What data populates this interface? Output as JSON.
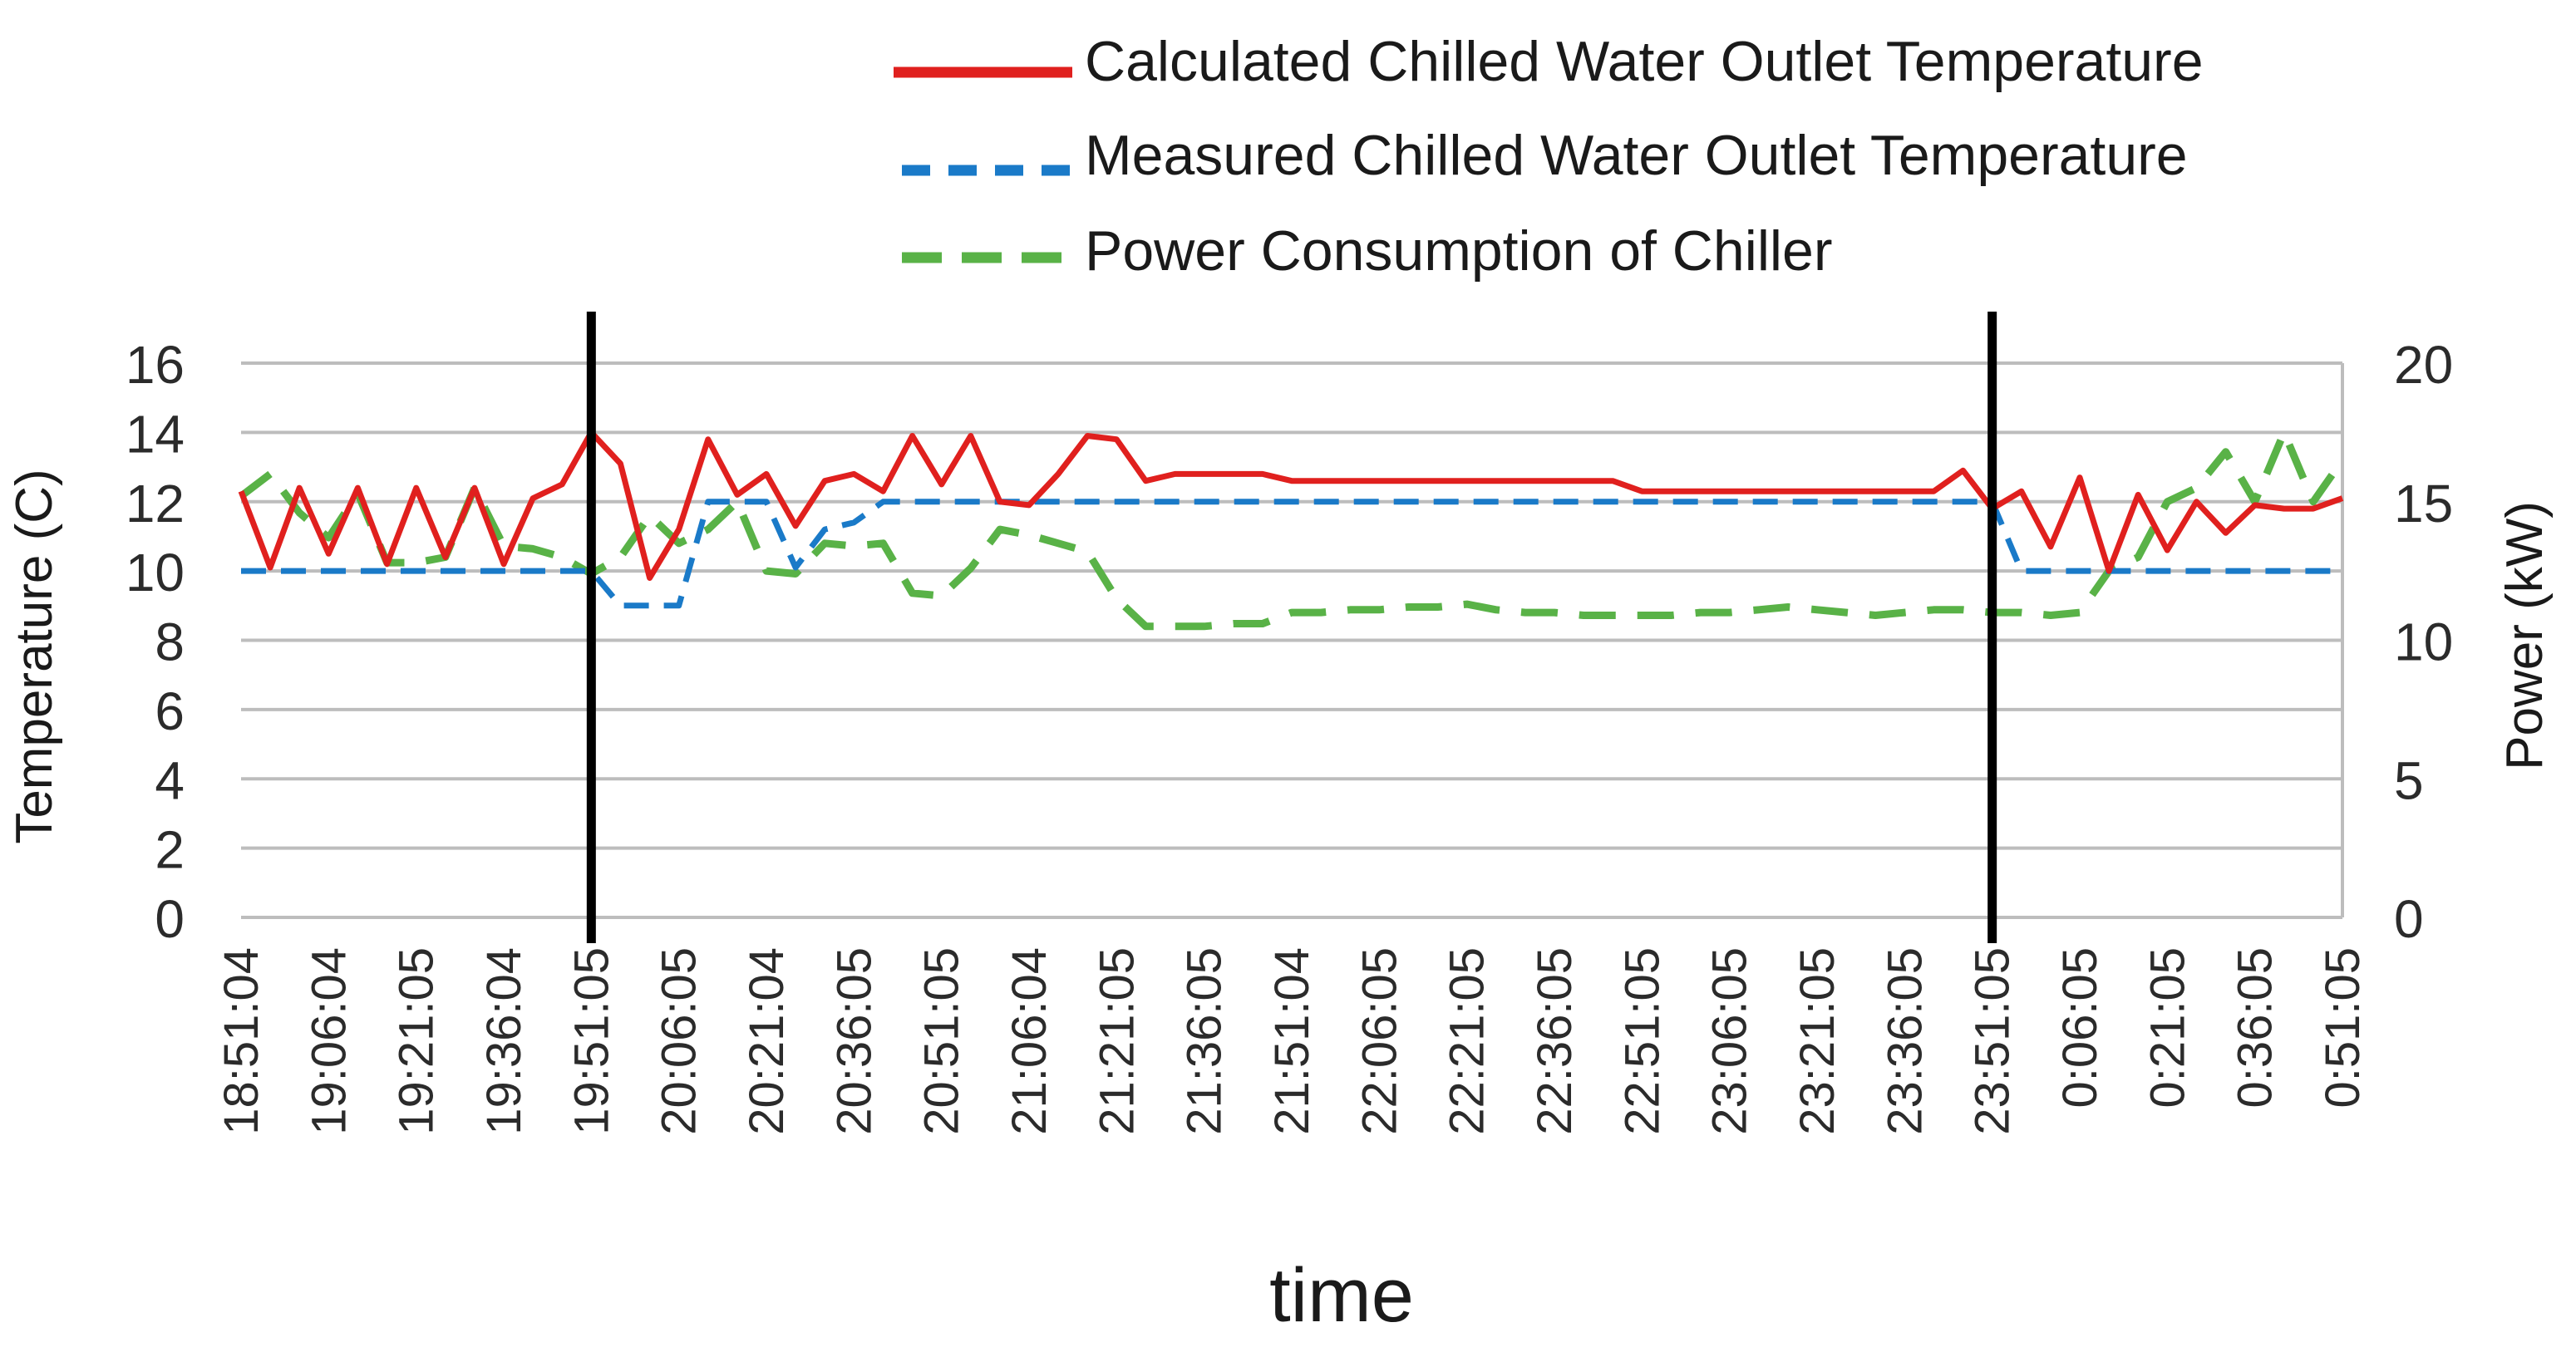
{
  "chart_data": {
    "type": "line",
    "xlabel": "time",
    "ylabel": "Temperature (C)",
    "y2label": "Power (kW)",
    "ylim": [
      0,
      16
    ],
    "y2lim": [
      0,
      20
    ],
    "yticks": [
      0,
      2,
      4,
      6,
      8,
      10,
      12,
      14,
      16
    ],
    "y2ticks": [
      0,
      5,
      10,
      15,
      20
    ],
    "grid": true,
    "legend_position": "top-right",
    "x_tick_labels": [
      "18:51:04",
      "19:06:04",
      "19:21:05",
      "19:36:04",
      "19:51:05",
      "20:06:05",
      "20:21:04",
      "20:36:05",
      "20:51:05",
      "21:06:04",
      "21:21:05",
      "21:36:05",
      "21:51:04",
      "22:06:05",
      "22:21:05",
      "22:36:05",
      "22:51:05",
      "23:06:05",
      "23:21:05",
      "23:36:05",
      "23:51:05",
      "0:06:05",
      "0:21:05",
      "0:36:05",
      "0:51:05"
    ],
    "x_samples_per_interval": 3,
    "vertical_markers": [
      "19:51:05",
      "23:51:05"
    ],
    "series": [
      {
        "name": "Calculated Chilled Water Outlet Temperature",
        "axis": "left",
        "color": "#e0201e",
        "style": "solid",
        "values": [
          12.3,
          10.1,
          12.4,
          10.5,
          12.4,
          10.2,
          12.4,
          10.4,
          12.4,
          10.2,
          12.1,
          12.5,
          14.0,
          13.1,
          9.8,
          11.2,
          13.8,
          12.2,
          12.8,
          11.3,
          12.6,
          12.8,
          12.3,
          13.9,
          12.5,
          13.9,
          12.0,
          11.9,
          12.8,
          13.9,
          13.8,
          12.6,
          12.8,
          12.8,
          12.8,
          12.8,
          12.6,
          12.6,
          12.6,
          12.6,
          12.6,
          12.6,
          12.6,
          12.6,
          12.6,
          12.6,
          12.6,
          12.6,
          12.3,
          12.3,
          12.3,
          12.3,
          12.3,
          12.3,
          12.3,
          12.3,
          12.3,
          12.3,
          12.3,
          12.9,
          11.8,
          12.3,
          10.7,
          12.7,
          10.0,
          12.2,
          10.6,
          12.0,
          11.1,
          11.9,
          11.8,
          11.8,
          12.1
        ]
      },
      {
        "name": "Measured Chilled Water Outlet Temperature",
        "axis": "left",
        "color": "#1a7ac8",
        "style": "dashed",
        "values": [
          10,
          10,
          10,
          10,
          10,
          10,
          10,
          10,
          10,
          10,
          10,
          10,
          10,
          9.0,
          9.0,
          9.0,
          12,
          12,
          12,
          10.1,
          11.2,
          11.4,
          12,
          12,
          12,
          12,
          12,
          12,
          12,
          12,
          12,
          12,
          12,
          12,
          12,
          12,
          12,
          12,
          12,
          12,
          12,
          12,
          12,
          12,
          12,
          12,
          12,
          12,
          12,
          12,
          12,
          12,
          12,
          12,
          12,
          12,
          12,
          12,
          12,
          12,
          12,
          10,
          10,
          10,
          10,
          10,
          10,
          10,
          10,
          10,
          10,
          10,
          10
        ]
      },
      {
        "name": "Power Consumption of Chiller",
        "axis": "right",
        "color": "#59b247",
        "style": "dashed",
        "values": [
          15.2,
          16.0,
          14.6,
          13.7,
          15.3,
          12.8,
          12.8,
          13.0,
          15.5,
          13.4,
          13.3,
          13.0,
          12.4,
          13.0,
          14.5,
          13.5,
          14.0,
          15.0,
          12.5,
          12.4,
          13.5,
          13.4,
          13.5,
          11.7,
          11.6,
          12.6,
          14.0,
          13.8,
          13.5,
          13.2,
          11.5,
          10.5,
          10.5,
          10.5,
          10.6,
          10.6,
          11.0,
          11.0,
          11.1,
          11.1,
          11.2,
          11.2,
          11.3,
          11.1,
          11.0,
          11.0,
          10.9,
          10.9,
          10.9,
          10.9,
          11.0,
          11.0,
          11.1,
          11.2,
          11.1,
          11.0,
          10.9,
          11.0,
          11.1,
          11.1,
          11.0,
          11.0,
          10.9,
          11.0,
          12.5,
          13.0,
          15.0,
          15.5,
          16.8,
          15.0,
          17.5,
          15.0,
          16.5
        ]
      }
    ]
  }
}
